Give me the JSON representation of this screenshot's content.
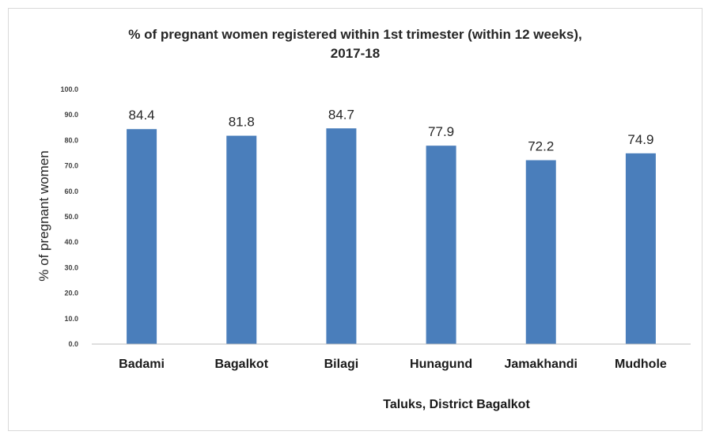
{
  "chart_data": {
    "type": "bar",
    "title_line1": "% of pregnant  women registered within 1st trimester (within 12 weeks),",
    "title_line2": "2017-18",
    "xlabel": "Taluks,  District Bagalkot",
    "ylabel": "% of pregnant women",
    "categories": [
      "Badami",
      "Bagalkot",
      "Bilagi",
      "Hunagund",
      "Jamakhandi",
      "Mudhole"
    ],
    "values": [
      84.4,
      81.8,
      84.7,
      77.9,
      72.2,
      74.9
    ],
    "value_labels": [
      "84.4",
      "81.8",
      "84.7",
      "77.9",
      "72.2",
      "74.9"
    ],
    "ylim": [
      0,
      100
    ],
    "yticks": [
      "0.0",
      "10.0",
      "20.0",
      "30.0",
      "40.0",
      "50.0",
      "60.0",
      "70.0",
      "80.0",
      "90.0",
      "100.0"
    ],
    "grid": false,
    "bar_color": "#4a7ebb",
    "legend": "none"
  }
}
